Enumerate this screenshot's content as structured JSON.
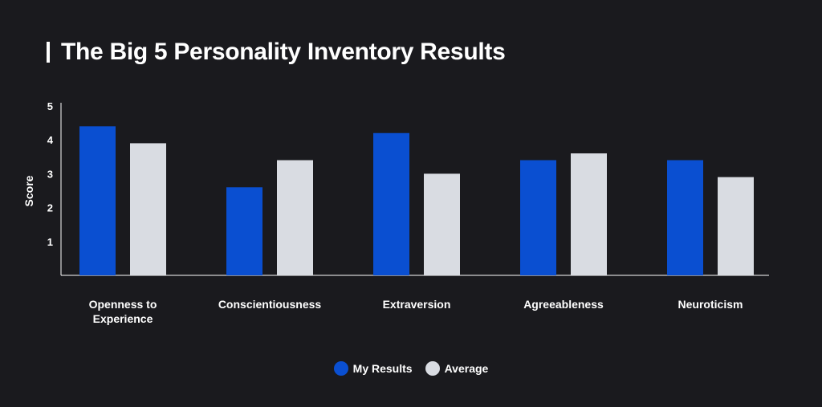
{
  "title": "The Big 5 Personality Inventory Results",
  "colors": {
    "my_results": "#0a4fd1",
    "average": "#d9dce2",
    "axis": "#ffffff",
    "background": "#1a1a1e"
  },
  "chart_data": {
    "type": "bar",
    "title": "The Big 5 Personality Inventory Results",
    "xlabel": "",
    "ylabel": "Score",
    "ylim": [
      0,
      5
    ],
    "yticks": [
      1,
      2,
      3,
      4,
      5
    ],
    "categories": [
      [
        "Openness to",
        "Experience"
      ],
      [
        "Conscientiousness"
      ],
      [
        "Extraversion"
      ],
      [
        "Agreeableness"
      ],
      [
        "Neuroticism"
      ]
    ],
    "series": [
      {
        "name": "My Results",
        "values": [
          4.4,
          2.6,
          4.2,
          3.4,
          3.4
        ]
      },
      {
        "name": "Average",
        "values": [
          3.9,
          3.4,
          3.0,
          3.6,
          2.9
        ]
      }
    ],
    "grid": false,
    "legend": "bottom-center"
  }
}
